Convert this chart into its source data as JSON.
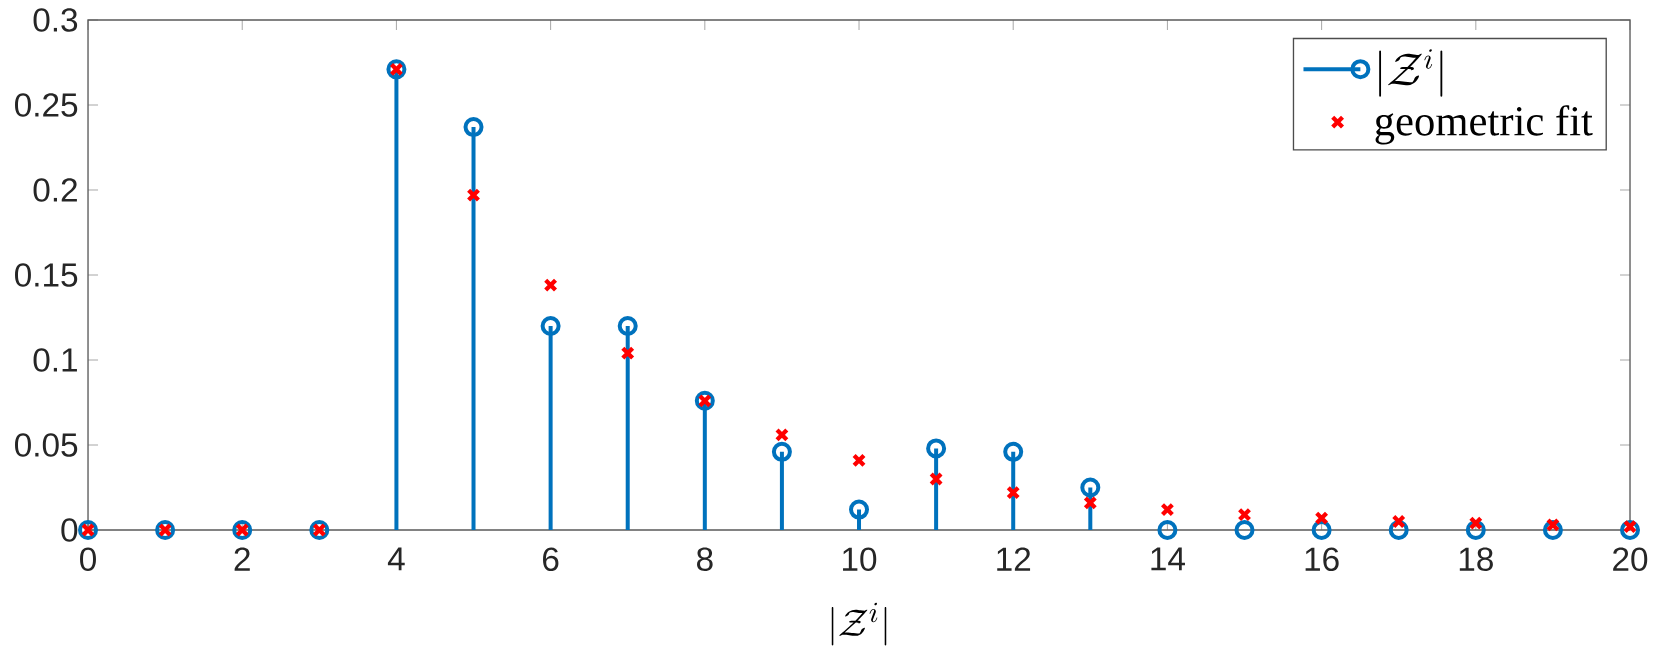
{
  "chart_data": {
    "type": "lollipop",
    "xlabel": "|\\mathcal{Z}^i|",
    "x": [
      0,
      1,
      2,
      3,
      4,
      5,
      6,
      7,
      8,
      9,
      10,
      11,
      12,
      13,
      14,
      15,
      16,
      17,
      18,
      19,
      20
    ],
    "series": [
      {
        "name": "|\\mathcal{Z}^i|",
        "marker": "circle",
        "color": "#0072bd",
        "values": [
          0,
          0,
          0,
          0,
          0.271,
          0.237,
          0.12,
          0.12,
          0.076,
          0.046,
          0.012,
          0.048,
          0.046,
          0.025,
          0,
          0,
          0,
          0,
          0,
          0,
          0
        ]
      },
      {
        "name": "geometric fit",
        "type": "scatter",
        "marker": "cross",
        "color": "#ff0000",
        "values": [
          0,
          0,
          0,
          0,
          0.271,
          0.197,
          0.144,
          0.104,
          0.076,
          0.056,
          0.041,
          0.03,
          0.022,
          0.016,
          0.012,
          0.009,
          0.007,
          0.005,
          0.004,
          0.003,
          0.002
        ]
      }
    ],
    "xlim": [
      0,
      20
    ],
    "xticks": [
      0,
      2,
      4,
      6,
      8,
      10,
      12,
      14,
      16,
      18,
      20
    ],
    "ylim": [
      0,
      0.3
    ],
    "yticks": [
      0,
      0.05,
      0.1,
      0.15,
      0.2,
      0.25,
      0.3
    ],
    "legend": "top right"
  }
}
